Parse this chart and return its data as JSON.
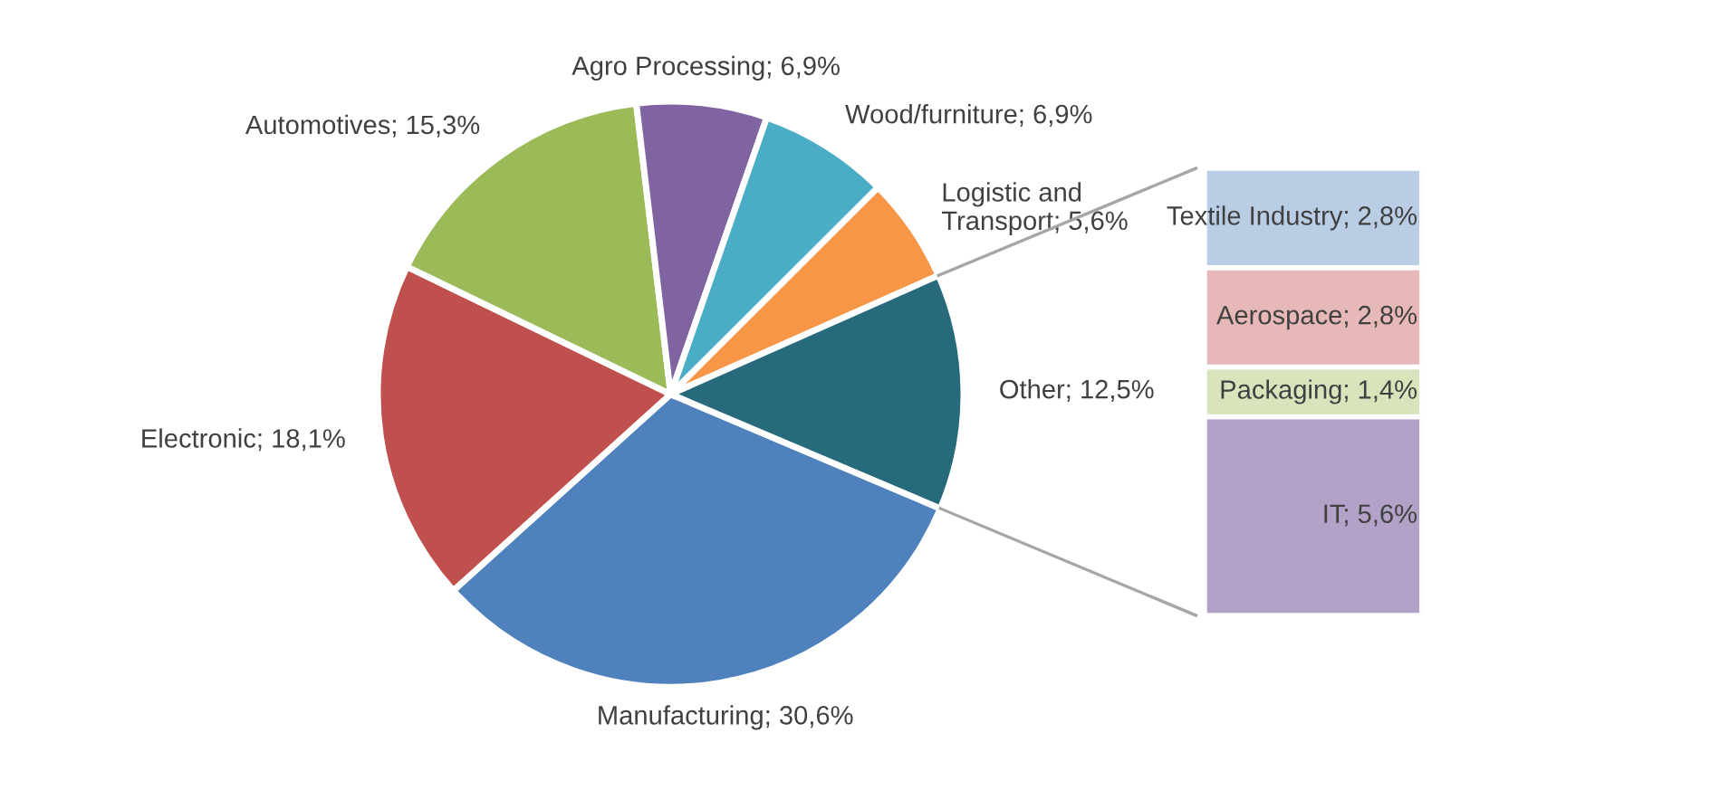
{
  "chart_data": [
    {
      "type": "pie",
      "categories": [
        "Manufacturing",
        "Electronic",
        "Automotives",
        "Agro Processing",
        "Wood/furniture",
        "Logistic and Transport",
        "Other"
      ],
      "values": [
        30.6,
        18.1,
        15.3,
        6.9,
        6.9,
        5.6,
        12.5
      ],
      "colors": [
        "#4f81bd",
        "#c0504d",
        "#9bbb59",
        "#8064a2",
        "#4bacc6",
        "#f79646",
        "#276a7c"
      ],
      "value_labels": [
        "30,6%",
        "18,1%",
        "15,3%",
        "6,9%",
        "6,9%",
        "5,6%",
        "12,5%"
      ]
    },
    {
      "type": "bar",
      "stacked": true,
      "categories": [
        null
      ],
      "series": [
        {
          "color": "#b3a2c7",
          "values": [
            5.6
          ],
          "value_labels": [
            "IT; 5,6%"
          ]
        },
        {
          "color": "#d7e4bc",
          "values": [
            1.4
          ],
          "value_labels": [
            "Packaging; 1,4%"
          ]
        },
        {
          "color": "#e6b9b8",
          "values": [
            2.8
          ],
          "value_labels": [
            "Aerospace; 2,8%"
          ]
        },
        {
          "color": "#b9cde5",
          "values": [
            2.8
          ],
          "value_labels": [
            "Textile Industry; 2,8%"
          ]
        }
      ]
    }
  ]
}
